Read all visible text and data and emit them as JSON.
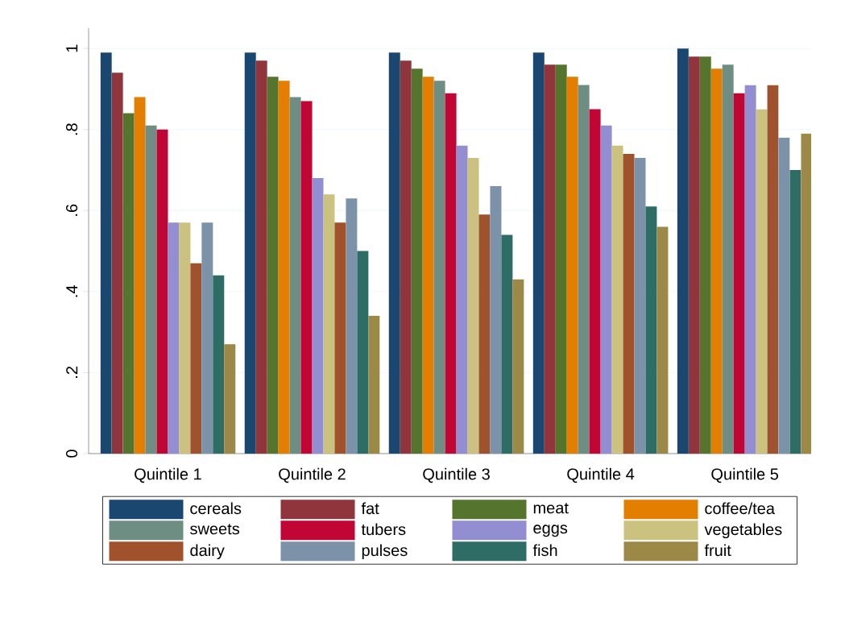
{
  "chart_data": {
    "type": "bar",
    "categories": [
      "Quintile 1",
      "Quintile 2",
      "Quintile 3",
      "Quintile 4",
      "Quintile 5"
    ],
    "series": [
      {
        "name": "cereals",
        "color": "#1a476f",
        "values": [
          0.99,
          0.99,
          0.99,
          0.99,
          1.0
        ]
      },
      {
        "name": "fat",
        "color": "#90353b",
        "values": [
          0.94,
          0.97,
          0.97,
          0.96,
          0.98
        ]
      },
      {
        "name": "meat",
        "color": "#55752f",
        "values": [
          0.84,
          0.93,
          0.95,
          0.96,
          0.98
        ]
      },
      {
        "name": "coffee/tea",
        "color": "#e37e00",
        "values": [
          0.88,
          0.92,
          0.93,
          0.93,
          0.95
        ]
      },
      {
        "name": "sweets",
        "color": "#6e8e84",
        "values": [
          0.81,
          0.88,
          0.92,
          0.91,
          0.96
        ]
      },
      {
        "name": "tubers",
        "color": "#c10534",
        "values": [
          0.8,
          0.87,
          0.89,
          0.85,
          0.89
        ]
      },
      {
        "name": "eggs",
        "color": "#938dd2",
        "values": [
          0.57,
          0.68,
          0.76,
          0.81,
          0.91
        ]
      },
      {
        "name": "vegetables",
        "color": "#cac27e",
        "values": [
          0.57,
          0.64,
          0.73,
          0.76,
          0.85
        ]
      },
      {
        "name": "dairy",
        "color": "#a0522d",
        "values": [
          0.47,
          0.57,
          0.59,
          0.74,
          0.91
        ]
      },
      {
        "name": "pulses",
        "color": "#7b92a8",
        "values": [
          0.57,
          0.63,
          0.66,
          0.73,
          0.78
        ]
      },
      {
        "name": "fish",
        "color": "#2d6d66",
        "values": [
          0.44,
          0.5,
          0.54,
          0.61,
          0.7
        ]
      },
      {
        "name": "fruit",
        "color": "#9c8847",
        "values": [
          0.27,
          0.34,
          0.43,
          0.56,
          0.79
        ]
      }
    ],
    "ylim": [
      0,
      1.05
    ],
    "yticks": [
      0,
      {
        "value": 0.2,
        "label": ".2"
      },
      {
        "value": 0.4,
        "label": ".4"
      },
      {
        "value": 0.6,
        "label": ".6"
      },
      {
        "value": 0.8,
        "label": ".8"
      },
      1
    ],
    "grid": "y",
    "legend": "bottom"
  }
}
